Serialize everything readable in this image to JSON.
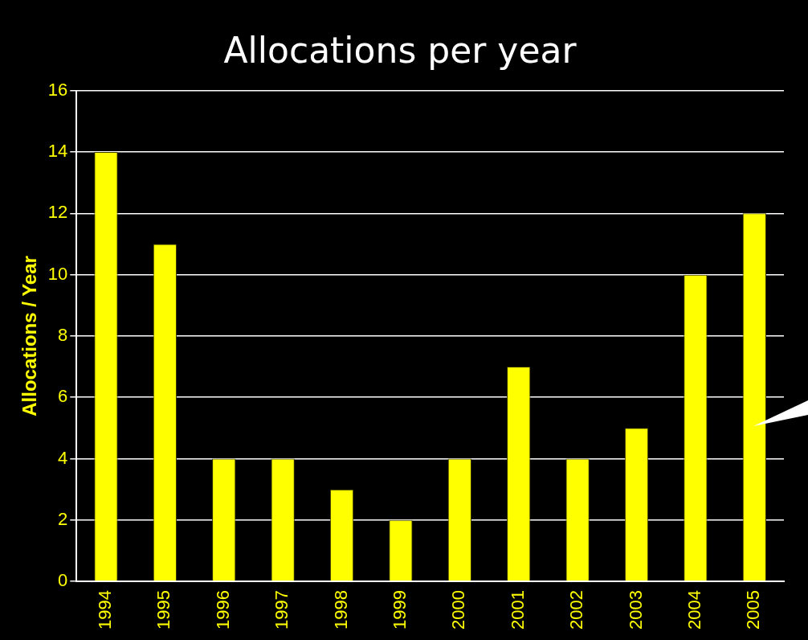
{
  "chart_data": {
    "type": "bar",
    "title": "Allocations per year",
    "ylabel": "Allocations / Year",
    "categories": [
      "1994",
      "1995",
      "1996",
      "1997",
      "1998",
      "1999",
      "2000",
      "2001",
      "2002",
      "2003",
      "2004",
      "2005"
    ],
    "values": [
      14,
      11,
      4,
      4,
      3,
      2,
      4,
      7,
      4,
      5,
      10,
      12
    ],
    "color": "#ffff00",
    "ylim": [
      0,
      16
    ],
    "yticks": [
      0,
      2,
      4,
      6,
      8,
      10,
      12,
      14,
      16
    ],
    "grid": "y",
    "legend": false
  }
}
